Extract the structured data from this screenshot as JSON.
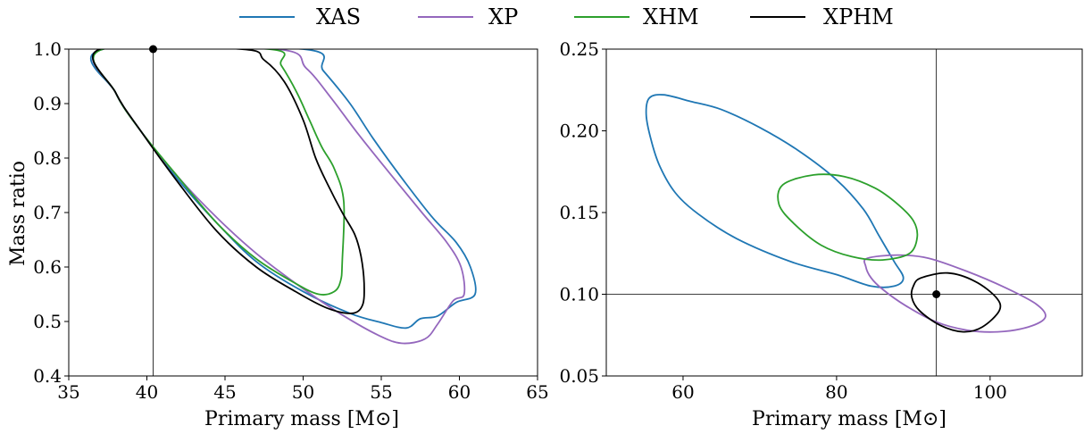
{
  "legend": {
    "placement": "top-center",
    "entries": [
      {
        "label": "XAS",
        "color": "#1f77b4"
      },
      {
        "label": "XP",
        "color": "#9467bd"
      },
      {
        "label": "XHM",
        "color": "#2ca02c"
      },
      {
        "label": "XPHM",
        "color": "#000000"
      }
    ]
  },
  "chart_data": [
    {
      "type": "contour",
      "xlabel": "Primary mass [M⊙]",
      "ylabel": "Mass ratio",
      "xlim": [
        35,
        65
      ],
      "ylim": [
        0.4,
        1.0
      ],
      "xticks": [
        35,
        40,
        45,
        50,
        55,
        60,
        65
      ],
      "xtick_labels": [
        "35",
        "40",
        "45",
        "50",
        "55",
        "60",
        "65"
      ],
      "yticks": [
        0.4,
        0.5,
        0.6,
        0.7,
        0.8,
        0.9,
        1.0
      ],
      "ytick_labels": [
        "0.4",
        "0.5",
        "0.6",
        "0.7",
        "0.8",
        "0.9",
        "1.0"
      ],
      "grid": false,
      "injection": {
        "x": 40.4,
        "y": 1.0
      },
      "series": [
        {
          "name": "XAS",
          "color": "#1f77b4",
          "points": [
            [
              37.2,
              1.0
            ],
            [
              38.0,
              0.92
            ],
            [
              39.6,
              0.85
            ],
            [
              42.0,
              0.76
            ],
            [
              44.5,
              0.68
            ],
            [
              47.0,
              0.61
            ],
            [
              50.0,
              0.555
            ],
            [
              53.0,
              0.515
            ],
            [
              55.0,
              0.498
            ],
            [
              56.6,
              0.488
            ],
            [
              57.5,
              0.505
            ],
            [
              58.6,
              0.51
            ],
            [
              59.8,
              0.535
            ],
            [
              61.0,
              0.55
            ],
            [
              60.7,
              0.6
            ],
            [
              59.8,
              0.645
            ],
            [
              58.3,
              0.69
            ],
            [
              56.4,
              0.76
            ],
            [
              54.5,
              0.835
            ],
            [
              53.0,
              0.9
            ],
            [
              51.3,
              0.96
            ],
            [
              50.0,
              1.0
            ]
          ]
        },
        {
          "name": "XP",
          "color": "#9467bd",
          "points": [
            [
              37.2,
              1.0
            ],
            [
              38.0,
              0.92
            ],
            [
              39.6,
              0.85
            ],
            [
              42.0,
              0.765
            ],
            [
              44.5,
              0.69
            ],
            [
              47.0,
              0.625
            ],
            [
              50.0,
              0.56
            ],
            [
              52.5,
              0.512
            ],
            [
              54.8,
              0.475
            ],
            [
              56.3,
              0.46
            ],
            [
              57.8,
              0.468
            ],
            [
              58.6,
              0.495
            ],
            [
              59.6,
              0.538
            ],
            [
              60.3,
              0.55
            ],
            [
              60.1,
              0.6
            ],
            [
              59.2,
              0.645
            ],
            [
              57.6,
              0.7
            ],
            [
              55.6,
              0.77
            ],
            [
              53.5,
              0.845
            ],
            [
              51.8,
              0.91
            ],
            [
              50.2,
              0.965
            ],
            [
              48.3,
              1.0
            ]
          ]
        },
        {
          "name": "XHM",
          "color": "#2ca02c",
          "points": [
            [
              37.2,
              1.0
            ],
            [
              38.0,
              0.92
            ],
            [
              39.6,
              0.85
            ],
            [
              42.0,
              0.765
            ],
            [
              44.5,
              0.68
            ],
            [
              47.0,
              0.615
            ],
            [
              49.5,
              0.57
            ],
            [
              51.0,
              0.55
            ],
            [
              52.0,
              0.555
            ],
            [
              52.4,
              0.575
            ],
            [
              52.5,
              0.61
            ],
            [
              52.6,
              0.72
            ],
            [
              52.0,
              0.78
            ],
            [
              51.2,
              0.82
            ],
            [
              50.4,
              0.87
            ],
            [
              49.6,
              0.92
            ],
            [
              48.6,
              0.97
            ],
            [
              47.8,
              1.0
            ]
          ]
        },
        {
          "name": "XPHM",
          "color": "#000000",
          "points": [
            [
              37.0,
              1.0
            ],
            [
              38.0,
              0.92
            ],
            [
              39.6,
              0.85
            ],
            [
              42.0,
              0.755
            ],
            [
              44.5,
              0.665
            ],
            [
              47.0,
              0.6
            ],
            [
              49.5,
              0.555
            ],
            [
              51.5,
              0.525
            ],
            [
              53.1,
              0.515
            ],
            [
              53.8,
              0.53
            ],
            [
              53.9,
              0.57
            ],
            [
              53.7,
              0.62
            ],
            [
              53.3,
              0.66
            ],
            [
              52.5,
              0.7
            ],
            [
              51.6,
              0.75
            ],
            [
              50.8,
              0.8
            ],
            [
              50.0,
              0.87
            ],
            [
              48.8,
              0.94
            ],
            [
              47.5,
              0.98
            ],
            [
              46.0,
              1.0
            ]
          ]
        }
      ]
    },
    {
      "type": "contour",
      "xlabel": "Primary mass [M⊙]",
      "ylabel": "",
      "xlim": [
        50,
        112
      ],
      "ylim": [
        0.05,
        0.25
      ],
      "xticks": [
        60,
        80,
        100
      ],
      "xtick_labels": [
        "60",
        "80",
        "100"
      ],
      "yticks": [
        0.05,
        0.1,
        0.15,
        0.2,
        0.25
      ],
      "ytick_labels": [
        "0.05",
        "0.10",
        "0.15",
        "0.20",
        "0.25"
      ],
      "grid": false,
      "injection": {
        "x": 93.0,
        "y": 0.1
      },
      "series": [
        {
          "name": "XAS",
          "color": "#1f77b4",
          "points": [
            [
              55.6,
              0.22
            ],
            [
              57.5,
              0.222
            ],
            [
              61.0,
              0.218
            ],
            [
              65.0,
              0.213
            ],
            [
              70.0,
              0.202
            ],
            [
              75.0,
              0.188
            ],
            [
              80.0,
              0.17
            ],
            [
              83.5,
              0.152
            ],
            [
              85.5,
              0.136
            ],
            [
              87.5,
              0.12
            ],
            [
              88.7,
              0.11
            ],
            [
              87.5,
              0.105
            ],
            [
              84.5,
              0.105
            ],
            [
              80.0,
              0.112
            ],
            [
              74.0,
              0.12
            ],
            [
              67.0,
              0.134
            ],
            [
              62.0,
              0.149
            ],
            [
              59.0,
              0.162
            ],
            [
              57.0,
              0.178
            ],
            [
              55.8,
              0.195
            ],
            [
              55.2,
              0.21
            ]
          ]
        },
        {
          "name": "XP",
          "color": "#9467bd",
          "points": [
            [
              84.0,
              0.122
            ],
            [
              88.0,
              0.124
            ],
            [
              92.0,
              0.122
            ],
            [
              97.0,
              0.114
            ],
            [
              102.0,
              0.104
            ],
            [
              106.0,
              0.094
            ],
            [
              107.2,
              0.086
            ],
            [
              105.0,
              0.08
            ],
            [
              101.0,
              0.077
            ],
            [
              97.0,
              0.078
            ],
            [
              93.0,
              0.083
            ],
            [
              89.0,
              0.093
            ],
            [
              86.0,
              0.103
            ],
            [
              84.5,
              0.11
            ],
            [
              83.8,
              0.117
            ]
          ]
        },
        {
          "name": "XHM",
          "color": "#2ca02c",
          "points": [
            [
              73.0,
              0.167
            ],
            [
              77.0,
              0.173
            ],
            [
              81.0,
              0.172
            ],
            [
              85.0,
              0.165
            ],
            [
              88.0,
              0.155
            ],
            [
              90.0,
              0.145
            ],
            [
              90.5,
              0.135
            ],
            [
              89.5,
              0.125
            ],
            [
              86.0,
              0.121
            ],
            [
              82.0,
              0.123
            ],
            [
              78.0,
              0.13
            ],
            [
              74.5,
              0.143
            ],
            [
              72.5,
              0.155
            ]
          ]
        },
        {
          "name": "XPHM",
          "color": "#000000",
          "points": [
            [
              91.0,
              0.11
            ],
            [
              94.5,
              0.113
            ],
            [
              98.0,
              0.108
            ],
            [
              100.8,
              0.098
            ],
            [
              101.2,
              0.09
            ],
            [
              99.0,
              0.08
            ],
            [
              96.5,
              0.077
            ],
            [
              93.5,
              0.081
            ],
            [
              90.8,
              0.09
            ],
            [
              89.8,
              0.098
            ],
            [
              90.0,
              0.105
            ]
          ]
        }
      ]
    }
  ]
}
